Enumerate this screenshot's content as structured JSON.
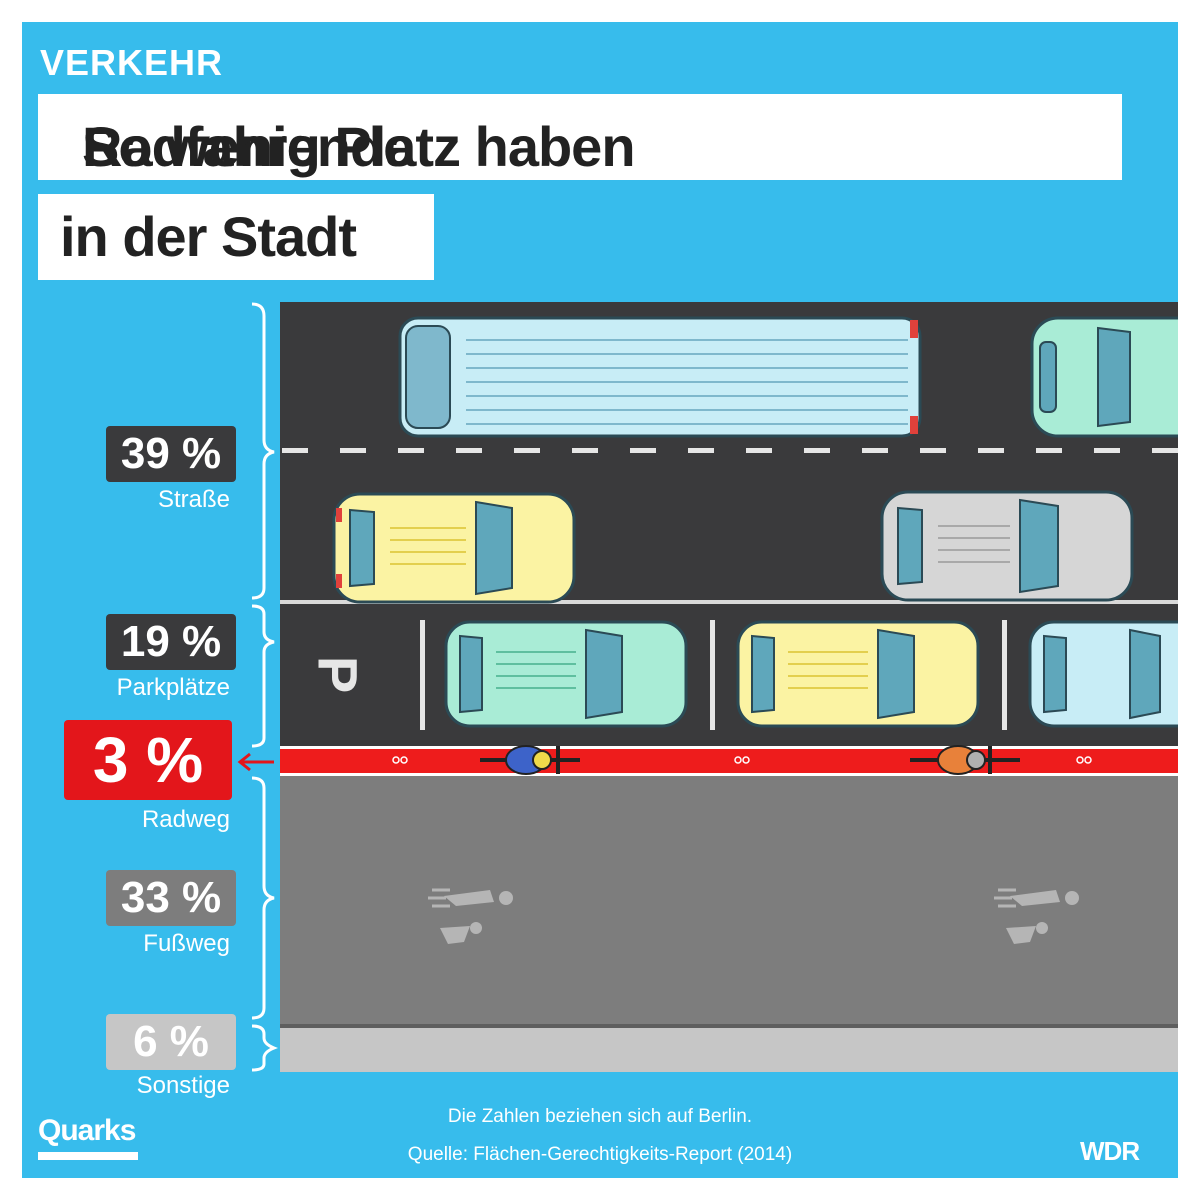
{
  "header": {
    "kicker": "VERKEHR",
    "title_line1_part1": "So wenig Platz haben ",
    "title_line1_accent": "Radfahrende",
    "title_line2": "in der Stadt"
  },
  "segments": [
    {
      "id": "strasse",
      "percent": "39 %",
      "label": "Straße",
      "box_color": "#3a3a3c"
    },
    {
      "id": "parkplaetze",
      "percent": "19 %",
      "label": "Parkplätze",
      "box_color": "#3a3a3c"
    },
    {
      "id": "radweg",
      "percent": "3 %",
      "label": "Radweg",
      "box_color": "#e3161b"
    },
    {
      "id": "fussweg",
      "percent": "33 %",
      "label": "Fußweg",
      "box_color": "#7d7d7d"
    },
    {
      "id": "sonstige",
      "percent": "6 %",
      "label": "Sonstige",
      "box_color": "#c6c6c6"
    }
  ],
  "parking_sign": "P",
  "footer": {
    "note": "Die Zahlen beziehen sich auf Berlin.",
    "source": "Quelle: Flächen-Gerechtigkeits-Report (2014)",
    "logo_left": "Quarks",
    "logo_right": "WDR"
  },
  "icons": [
    "car-icon",
    "bus-icon",
    "cyclist-icon",
    "bicycle-symbol-icon",
    "pedestrian-symbol-icon",
    "arrow-left-icon",
    "brace-icon"
  ]
}
